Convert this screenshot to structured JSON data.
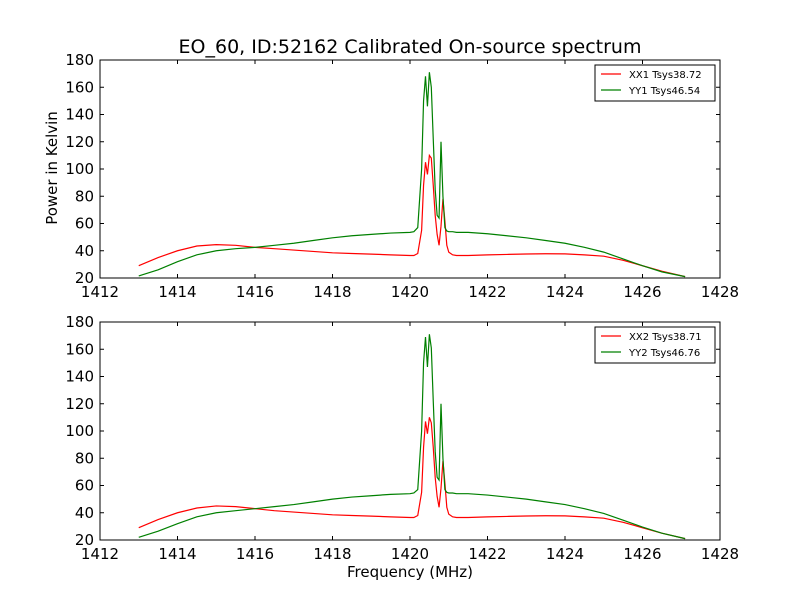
{
  "chart_data": {
    "type": "line",
    "title": "EO_60, ID:52162 Calibrated On-source spectrum",
    "xlabel": "Frequency (MHz)",
    "ylabel": "Power in Kelvin",
    "grid": false,
    "legend_position": "upper right",
    "colors": {
      "red": "#ff0000",
      "green": "#008000"
    },
    "panels": [
      {
        "xlim": [
          1412,
          1428
        ],
        "ylim": [
          20,
          180
        ],
        "x_ticks": [
          1412,
          1414,
          1416,
          1418,
          1420,
          1422,
          1424,
          1426,
          1428
        ],
        "y_ticks": [
          20,
          40,
          60,
          80,
          100,
          120,
          140,
          160,
          180
        ],
        "series": [
          {
            "name": "XX1 Tsys38.72",
            "color": "#ff0000",
            "x": [
              1413.0,
              1413.5,
              1414.0,
              1414.5,
              1415.0,
              1415.5,
              1416.0,
              1416.5,
              1417.0,
              1417.5,
              1418.0,
              1418.5,
              1419.0,
              1419.5,
              1420.0,
              1420.1,
              1420.2,
              1420.3,
              1420.35,
              1420.4,
              1420.45,
              1420.5,
              1420.55,
              1420.6,
              1420.65,
              1420.7,
              1420.75,
              1420.8,
              1420.85,
              1420.9,
              1420.95,
              1421.0,
              1421.1,
              1421.2,
              1421.5,
              1422.0,
              1422.5,
              1423.0,
              1423.5,
              1424.0,
              1424.5,
              1425.0,
              1425.5,
              1426.0,
              1426.5,
              1427.1
            ],
            "y": [
              29,
              35,
              40,
              43.5,
              44.5,
              44,
              42.5,
              41.5,
              40.5,
              39.5,
              38.5,
              38,
              37.5,
              37,
              36.5,
              36.5,
              38,
              55,
              88,
              105,
              96,
              110,
              108,
              88,
              66,
              52,
              44,
              58,
              78,
              62,
              44,
              39,
              37,
              36.5,
              36.5,
              37,
              37.3,
              37.6,
              37.8,
              37.7,
              37,
              36,
              33,
              29,
              25,
              21
            ]
          },
          {
            "name": "YY1 Tsys46.54",
            "color": "#008000",
            "x": [
              1413.0,
              1413.5,
              1414.0,
              1414.5,
              1415.0,
              1415.5,
              1416.0,
              1416.5,
              1417.0,
              1417.5,
              1418.0,
              1418.5,
              1419.0,
              1419.5,
              1420.0,
              1420.1,
              1420.2,
              1420.3,
              1420.35,
              1420.4,
              1420.45,
              1420.5,
              1420.55,
              1420.6,
              1420.65,
              1420.7,
              1420.75,
              1420.8,
              1420.85,
              1420.9,
              1420.95,
              1421.0,
              1421.1,
              1421.2,
              1421.5,
              1422.0,
              1422.5,
              1423.0,
              1423.5,
              1424.0,
              1424.5,
              1425.0,
              1425.5,
              1426.0,
              1426.5,
              1427.1
            ],
            "y": [
              21.5,
              26,
              32,
              37,
              40,
              41.5,
              42.5,
              44,
              45.5,
              47.5,
              49.5,
              51,
              52,
              53,
              53.5,
              54,
              57,
              100,
              150,
              168,
              146,
              171,
              160,
              122,
              85,
              66,
              64,
              120,
              80,
              57,
              54.5,
              54,
              54,
              53.5,
              53.5,
              52.5,
              51,
              49.5,
              47.5,
              45.5,
              42.5,
              39,
              34,
              29,
              24.5,
              21
            ]
          }
        ]
      },
      {
        "xlim": [
          1412,
          1428
        ],
        "ylim": [
          20,
          180
        ],
        "x_ticks": [
          1412,
          1414,
          1416,
          1418,
          1420,
          1422,
          1424,
          1426,
          1428
        ],
        "y_ticks": [
          20,
          40,
          60,
          80,
          100,
          120,
          140,
          160,
          180
        ],
        "series": [
          {
            "name": "XX2 Tsys38.71",
            "color": "#ff0000",
            "x": [
              1413.0,
              1413.5,
              1414.0,
              1414.5,
              1415.0,
              1415.5,
              1416.0,
              1416.5,
              1417.0,
              1417.5,
              1418.0,
              1418.5,
              1419.0,
              1419.5,
              1420.0,
              1420.1,
              1420.2,
              1420.3,
              1420.35,
              1420.4,
              1420.45,
              1420.5,
              1420.55,
              1420.6,
              1420.65,
              1420.7,
              1420.75,
              1420.8,
              1420.85,
              1420.9,
              1420.95,
              1421.0,
              1421.1,
              1421.2,
              1421.5,
              1422.0,
              1422.5,
              1423.0,
              1423.5,
              1424.0,
              1424.5,
              1425.0,
              1425.5,
              1426.0,
              1426.5,
              1427.1
            ],
            "y": [
              29,
              35,
              40,
              43.5,
              45,
              44.5,
              43,
              41.5,
              40.5,
              39.5,
              38.5,
              38,
              37.5,
              37,
              36.5,
              36.5,
              38,
              55,
              88,
              107,
              98,
              110,
              106,
              88,
              66,
              52,
              44,
              58,
              78,
              62,
              44,
              39,
              37,
              36.5,
              36.5,
              37,
              37.3,
              37.6,
              37.8,
              37.7,
              37,
              36,
              33,
              29,
              25,
              21
            ]
          },
          {
            "name": "YY2 Tsys46.76",
            "color": "#008000",
            "x": [
              1413.0,
              1413.5,
              1414.0,
              1414.5,
              1415.0,
              1415.5,
              1416.0,
              1416.5,
              1417.0,
              1417.5,
              1418.0,
              1418.5,
              1419.0,
              1419.5,
              1420.0,
              1420.1,
              1420.2,
              1420.3,
              1420.35,
              1420.4,
              1420.45,
              1420.5,
              1420.55,
              1420.6,
              1420.65,
              1420.7,
              1420.75,
              1420.8,
              1420.85,
              1420.9,
              1420.95,
              1421.0,
              1421.1,
              1421.2,
              1421.5,
              1422.0,
              1422.5,
              1423.0,
              1423.5,
              1424.0,
              1424.5,
              1425.0,
              1425.5,
              1426.0,
              1426.5,
              1427.1
            ],
            "y": [
              22,
              26.5,
              32,
              37,
              40,
              41.5,
              43,
              44.5,
              46,
              48,
              50,
              51.5,
              52.5,
              53.5,
              54,
              54.5,
              57,
              100,
              150,
              169,
              147,
              171,
              161,
              122,
              85,
              66,
              64,
              120,
              80,
              57,
              55,
              54.5,
              54.5,
              54,
              54,
              53,
              51.5,
              50,
              48,
              46,
              43,
              39.5,
              34.5,
              29.5,
              25,
              21
            ]
          }
        ]
      }
    ]
  }
}
